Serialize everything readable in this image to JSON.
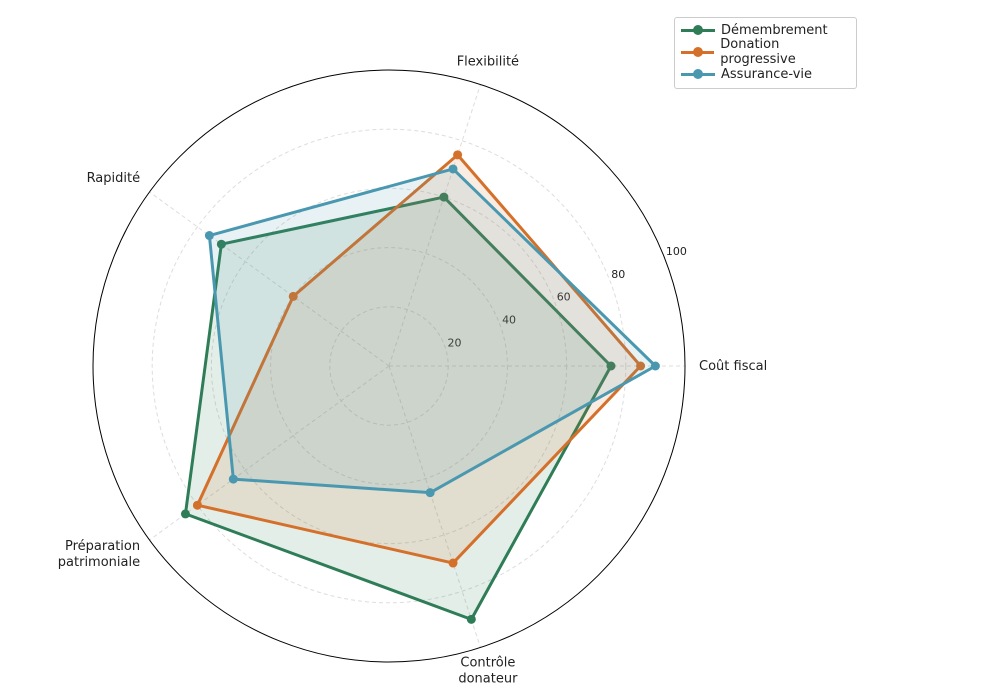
{
  "chart_data": {
    "type": "radar",
    "categories": [
      "Coût fiscal",
      "Flexibilité",
      "Rapidité",
      "Préparation\npatrimoniale",
      "Contrôle\ndonateur"
    ],
    "rlim": [
      0,
      100
    ],
    "rticks": [
      20,
      40,
      60,
      80,
      100
    ],
    "grid": true,
    "legend_position": "top-right",
    "series": [
      {
        "name": "Démembrement",
        "color": "#2e7d57",
        "values": [
          75,
          60,
          70,
          85,
          90
        ]
      },
      {
        "name": "Donation progressive",
        "color": "#d4702a",
        "values": [
          85,
          75,
          40,
          80,
          70
        ]
      },
      {
        "name": "Assurance-vie",
        "color": "#4a98b0",
        "values": [
          90,
          70,
          75,
          65,
          45
        ]
      }
    ]
  }
}
